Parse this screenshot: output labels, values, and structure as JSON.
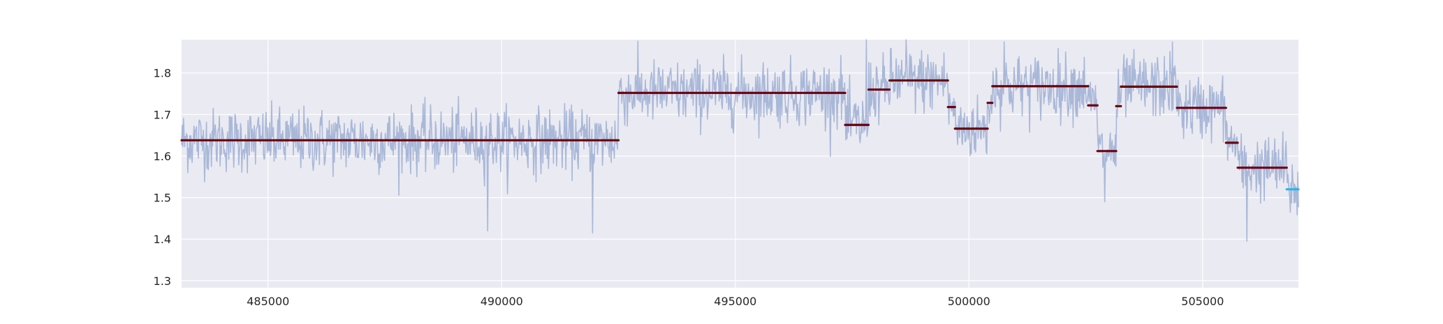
{
  "chart_data": {
    "type": "line",
    "title": "",
    "xlabel": "",
    "ylabel": "",
    "xlim": [
      483150,
      507050
    ],
    "ylim": [
      1.283,
      1.88
    ],
    "x_ticks": [
      485000,
      490000,
      495000,
      500000,
      505000
    ],
    "x_tick_labels": [
      "485000",
      "490000",
      "495000",
      "500000",
      "505000"
    ],
    "y_ticks": [
      1.3,
      1.4,
      1.5,
      1.6,
      1.7,
      1.8
    ],
    "y_tick_labels": [
      "1.3",
      "1.4",
      "1.5",
      "1.6",
      "1.7",
      "1.8"
    ],
    "grid": true,
    "legend": "none",
    "colors": {
      "background": "#eaeaf2",
      "grid": "#ffffff",
      "signal": "#a9b8d8",
      "segments": "#6b0010",
      "last_segment": "#29b5e8"
    },
    "series": [
      {
        "kind": "noisy_signal",
        "x_start": 483150,
        "x_end": 507050,
        "n_points": 1800,
        "noise_std": 0.038,
        "regimes": [
          {
            "x_start": 483150,
            "x_end": 492500,
            "level": 1.638
          },
          {
            "x_start": 492500,
            "x_end": 497350,
            "level": 1.752
          },
          {
            "x_start": 497350,
            "x_end": 497850,
            "level": 1.675
          },
          {
            "x_start": 497850,
            "x_end": 498300,
            "level": 1.76
          },
          {
            "x_start": 498300,
            "x_end": 499550,
            "level": 1.782
          },
          {
            "x_start": 499550,
            "x_end": 499700,
            "level": 1.718
          },
          {
            "x_start": 499700,
            "x_end": 500400,
            "level": 1.666
          },
          {
            "x_start": 500400,
            "x_end": 500500,
            "level": 1.728
          },
          {
            "x_start": 500500,
            "x_end": 502550,
            "level": 1.768
          },
          {
            "x_start": 502550,
            "x_end": 502750,
            "level": 1.722
          },
          {
            "x_start": 502750,
            "x_end": 503150,
            "level": 1.612
          },
          {
            "x_start": 503150,
            "x_end": 503250,
            "level": 1.72
          },
          {
            "x_start": 503250,
            "x_end": 504450,
            "level": 1.767
          },
          {
            "x_start": 504450,
            "x_end": 505500,
            "level": 1.716
          },
          {
            "x_start": 505500,
            "x_end": 505750,
            "level": 1.632
          },
          {
            "x_start": 505750,
            "x_end": 506800,
            "level": 1.572
          },
          {
            "x_start": 506800,
            "x_end": 507050,
            "level": 1.52
          }
        ],
        "spikes": [
          {
            "x": 489700,
            "y": 1.42
          },
          {
            "x": 491950,
            "y": 1.415
          },
          {
            "x": 505950,
            "y": 1.395
          },
          {
            "x": 497800,
            "y": 1.88
          },
          {
            "x": 498650,
            "y": 1.88
          },
          {
            "x": 500750,
            "y": 1.875
          },
          {
            "x": 502900,
            "y": 1.49
          },
          {
            "x": 504350,
            "y": 1.875
          }
        ]
      },
      {
        "kind": "segments",
        "segments": [
          {
            "x_start": 483150,
            "x_end": 492500,
            "y": 1.638
          },
          {
            "x_start": 492500,
            "x_end": 497350,
            "y": 1.752
          },
          {
            "x_start": 497350,
            "x_end": 497850,
            "y": 1.675
          },
          {
            "x_start": 497850,
            "x_end": 498300,
            "y": 1.76
          },
          {
            "x_start": 498300,
            "x_end": 499550,
            "y": 1.782
          },
          {
            "x_start": 499550,
            "x_end": 499700,
            "y": 1.718
          },
          {
            "x_start": 499700,
            "x_end": 500400,
            "y": 1.666
          },
          {
            "x_start": 500400,
            "x_end": 500500,
            "y": 1.728
          },
          {
            "x_start": 500500,
            "x_end": 502550,
            "y": 1.768
          },
          {
            "x_start": 502550,
            "x_end": 502750,
            "y": 1.722
          },
          {
            "x_start": 502750,
            "x_end": 503150,
            "y": 1.612
          },
          {
            "x_start": 503150,
            "x_end": 503250,
            "y": 1.72
          },
          {
            "x_start": 503250,
            "x_end": 504450,
            "y": 1.767
          },
          {
            "x_start": 504450,
            "x_end": 505500,
            "y": 1.716
          },
          {
            "x_start": 505500,
            "x_end": 505750,
            "y": 1.632
          },
          {
            "x_start": 505750,
            "x_end": 506800,
            "y": 1.572
          }
        ]
      },
      {
        "kind": "last_segment",
        "segments": [
          {
            "x_start": 506800,
            "x_end": 507050,
            "y": 1.52
          }
        ]
      }
    ]
  }
}
